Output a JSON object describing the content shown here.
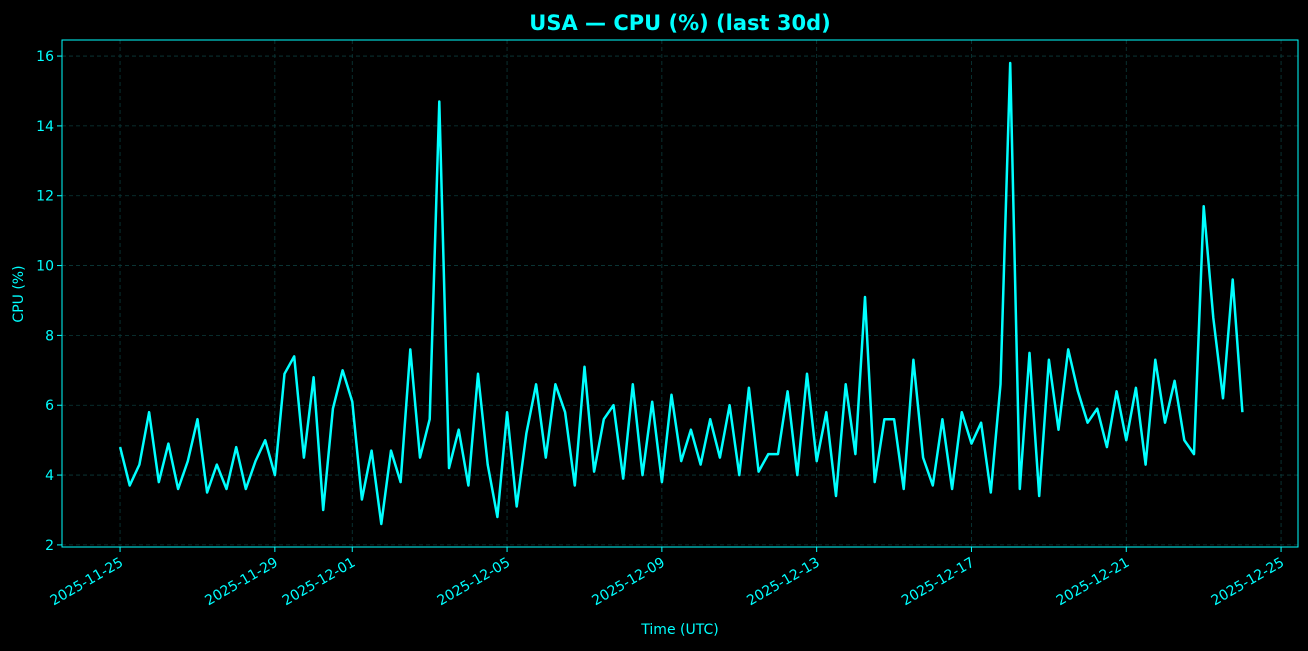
{
  "chart_data": {
    "type": "line",
    "title": "USA — CPU (%) (last 30d)",
    "xlabel": "Time (UTC)",
    "ylabel": "CPU (%)",
    "xlim": [
      "2025-11-23T12:00",
      "2025-12-25T10:30"
    ],
    "ylim": [
      1.94,
      16.46
    ],
    "x_ticks": [
      "2025-11-25",
      "2025-11-29",
      "2025-12-01",
      "2025-12-05",
      "2025-12-09",
      "2025-12-13",
      "2025-12-17",
      "2025-12-21",
      "2025-12-25"
    ],
    "y_ticks": [
      2,
      4,
      6,
      8,
      10,
      12,
      14,
      16
    ],
    "grid": true,
    "colors": {
      "background": "#000000",
      "line": "#00FFFF",
      "text": "#00FFFF",
      "grid": "#0b3b3b"
    },
    "series": [
      {
        "points": [
          [
            "2025-11-25T00:00",
            4.8
          ],
          [
            "2025-11-25T06:00",
            3.7
          ],
          [
            "2025-11-25T12:00",
            4.3
          ],
          [
            "2025-11-25T18:00",
            5.8
          ],
          [
            "2025-11-26T00:00",
            3.8
          ],
          [
            "2025-11-26T06:00",
            4.9
          ],
          [
            "2025-11-26T12:00",
            3.6
          ],
          [
            "2025-11-26T18:00",
            4.4
          ],
          [
            "2025-11-27T00:00",
            5.6
          ],
          [
            "2025-11-27T06:00",
            3.5
          ],
          [
            "2025-11-27T12:00",
            4.3
          ],
          [
            "2025-11-27T18:00",
            3.6
          ],
          [
            "2025-11-28T00:00",
            4.8
          ],
          [
            "2025-11-28T06:00",
            3.6
          ],
          [
            "2025-11-28T12:00",
            4.4
          ],
          [
            "2025-11-28T18:00",
            5.0
          ],
          [
            "2025-11-29T00:00",
            4.0
          ],
          [
            "2025-11-29T06:00",
            6.9
          ],
          [
            "2025-11-29T12:00",
            7.4
          ],
          [
            "2025-11-29T18:00",
            4.5
          ],
          [
            "2025-11-30T00:00",
            6.8
          ],
          [
            "2025-11-30T06:00",
            3.0
          ],
          [
            "2025-11-30T12:00",
            5.9
          ],
          [
            "2025-11-30T18:00",
            7.0
          ],
          [
            "2025-12-01T00:00",
            6.1
          ],
          [
            "2025-12-01T06:00",
            3.3
          ],
          [
            "2025-12-01T12:00",
            4.7
          ],
          [
            "2025-12-01T18:00",
            2.6
          ],
          [
            "2025-12-02T00:00",
            4.7
          ],
          [
            "2025-12-02T06:00",
            3.8
          ],
          [
            "2025-12-02T12:00",
            7.6
          ],
          [
            "2025-12-02T18:00",
            4.5
          ],
          [
            "2025-12-03T00:00",
            5.6
          ],
          [
            "2025-12-03T06:00",
            14.7
          ],
          [
            "2025-12-03T12:00",
            4.2
          ],
          [
            "2025-12-03T18:00",
            5.3
          ],
          [
            "2025-12-04T00:00",
            3.7
          ],
          [
            "2025-12-04T06:00",
            6.9
          ],
          [
            "2025-12-04T12:00",
            4.3
          ],
          [
            "2025-12-04T18:00",
            2.8
          ],
          [
            "2025-12-05T00:00",
            5.8
          ],
          [
            "2025-12-05T06:00",
            3.1
          ],
          [
            "2025-12-05T12:00",
            5.2
          ],
          [
            "2025-12-05T18:00",
            6.6
          ],
          [
            "2025-12-06T00:00",
            4.5
          ],
          [
            "2025-12-06T06:00",
            6.6
          ],
          [
            "2025-12-06T12:00",
            5.8
          ],
          [
            "2025-12-06T18:00",
            3.7
          ],
          [
            "2025-12-07T00:00",
            7.1
          ],
          [
            "2025-12-07T06:00",
            4.1
          ],
          [
            "2025-12-07T12:00",
            5.6
          ],
          [
            "2025-12-07T18:00",
            6.0
          ],
          [
            "2025-12-08T00:00",
            3.9
          ],
          [
            "2025-12-08T06:00",
            6.6
          ],
          [
            "2025-12-08T12:00",
            4.0
          ],
          [
            "2025-12-08T18:00",
            6.1
          ],
          [
            "2025-12-09T00:00",
            3.8
          ],
          [
            "2025-12-09T06:00",
            6.3
          ],
          [
            "2025-12-09T12:00",
            4.4
          ],
          [
            "2025-12-09T18:00",
            5.3
          ],
          [
            "2025-12-10T00:00",
            4.3
          ],
          [
            "2025-12-10T06:00",
            5.6
          ],
          [
            "2025-12-10T12:00",
            4.5
          ],
          [
            "2025-12-10T18:00",
            6.0
          ],
          [
            "2025-12-11T00:00",
            4.0
          ],
          [
            "2025-12-11T06:00",
            6.5
          ],
          [
            "2025-12-11T12:00",
            4.1
          ],
          [
            "2025-12-11T18:00",
            4.6
          ],
          [
            "2025-12-12T00:00",
            4.6
          ],
          [
            "2025-12-12T06:00",
            6.4
          ],
          [
            "2025-12-12T12:00",
            4.0
          ],
          [
            "2025-12-12T18:00",
            6.9
          ],
          [
            "2025-12-13T00:00",
            4.4
          ],
          [
            "2025-12-13T06:00",
            5.8
          ],
          [
            "2025-12-13T12:00",
            3.4
          ],
          [
            "2025-12-13T18:00",
            6.6
          ],
          [
            "2025-12-14T00:00",
            4.6
          ],
          [
            "2025-12-14T06:00",
            9.1
          ],
          [
            "2025-12-14T12:00",
            3.8
          ],
          [
            "2025-12-14T18:00",
            5.6
          ],
          [
            "2025-12-15T00:00",
            5.6
          ],
          [
            "2025-12-15T06:00",
            3.6
          ],
          [
            "2025-12-15T12:00",
            7.3
          ],
          [
            "2025-12-15T18:00",
            4.5
          ],
          [
            "2025-12-16T00:00",
            3.7
          ],
          [
            "2025-12-16T06:00",
            5.6
          ],
          [
            "2025-12-16T12:00",
            3.6
          ],
          [
            "2025-12-16T18:00",
            5.8
          ],
          [
            "2025-12-17T00:00",
            4.9
          ],
          [
            "2025-12-17T06:00",
            5.5
          ],
          [
            "2025-12-17T12:00",
            3.5
          ],
          [
            "2025-12-17T18:00",
            6.6
          ],
          [
            "2025-12-18T00:00",
            15.8
          ],
          [
            "2025-12-18T06:00",
            3.6
          ],
          [
            "2025-12-18T12:00",
            7.5
          ],
          [
            "2025-12-18T18:00",
            3.4
          ],
          [
            "2025-12-19T00:00",
            7.3
          ],
          [
            "2025-12-19T06:00",
            5.3
          ],
          [
            "2025-12-19T12:00",
            7.6
          ],
          [
            "2025-12-19T18:00",
            6.4
          ],
          [
            "2025-12-20T00:00",
            5.5
          ],
          [
            "2025-12-20T06:00",
            5.9
          ],
          [
            "2025-12-20T12:00",
            4.8
          ],
          [
            "2025-12-20T18:00",
            6.4
          ],
          [
            "2025-12-21T00:00",
            5.0
          ],
          [
            "2025-12-21T06:00",
            6.5
          ],
          [
            "2025-12-21T12:00",
            4.3
          ],
          [
            "2025-12-21T18:00",
            7.3
          ],
          [
            "2025-12-22T00:00",
            5.5
          ],
          [
            "2025-12-22T06:00",
            6.7
          ],
          [
            "2025-12-22T12:00",
            5.0
          ],
          [
            "2025-12-22T18:00",
            4.6
          ],
          [
            "2025-12-23T00:00",
            11.7
          ],
          [
            "2025-12-23T06:00",
            8.5
          ],
          [
            "2025-12-23T12:00",
            6.2
          ],
          [
            "2025-12-23T18:00",
            9.6
          ],
          [
            "2025-12-24T00:00",
            5.8
          ]
        ]
      }
    ]
  }
}
